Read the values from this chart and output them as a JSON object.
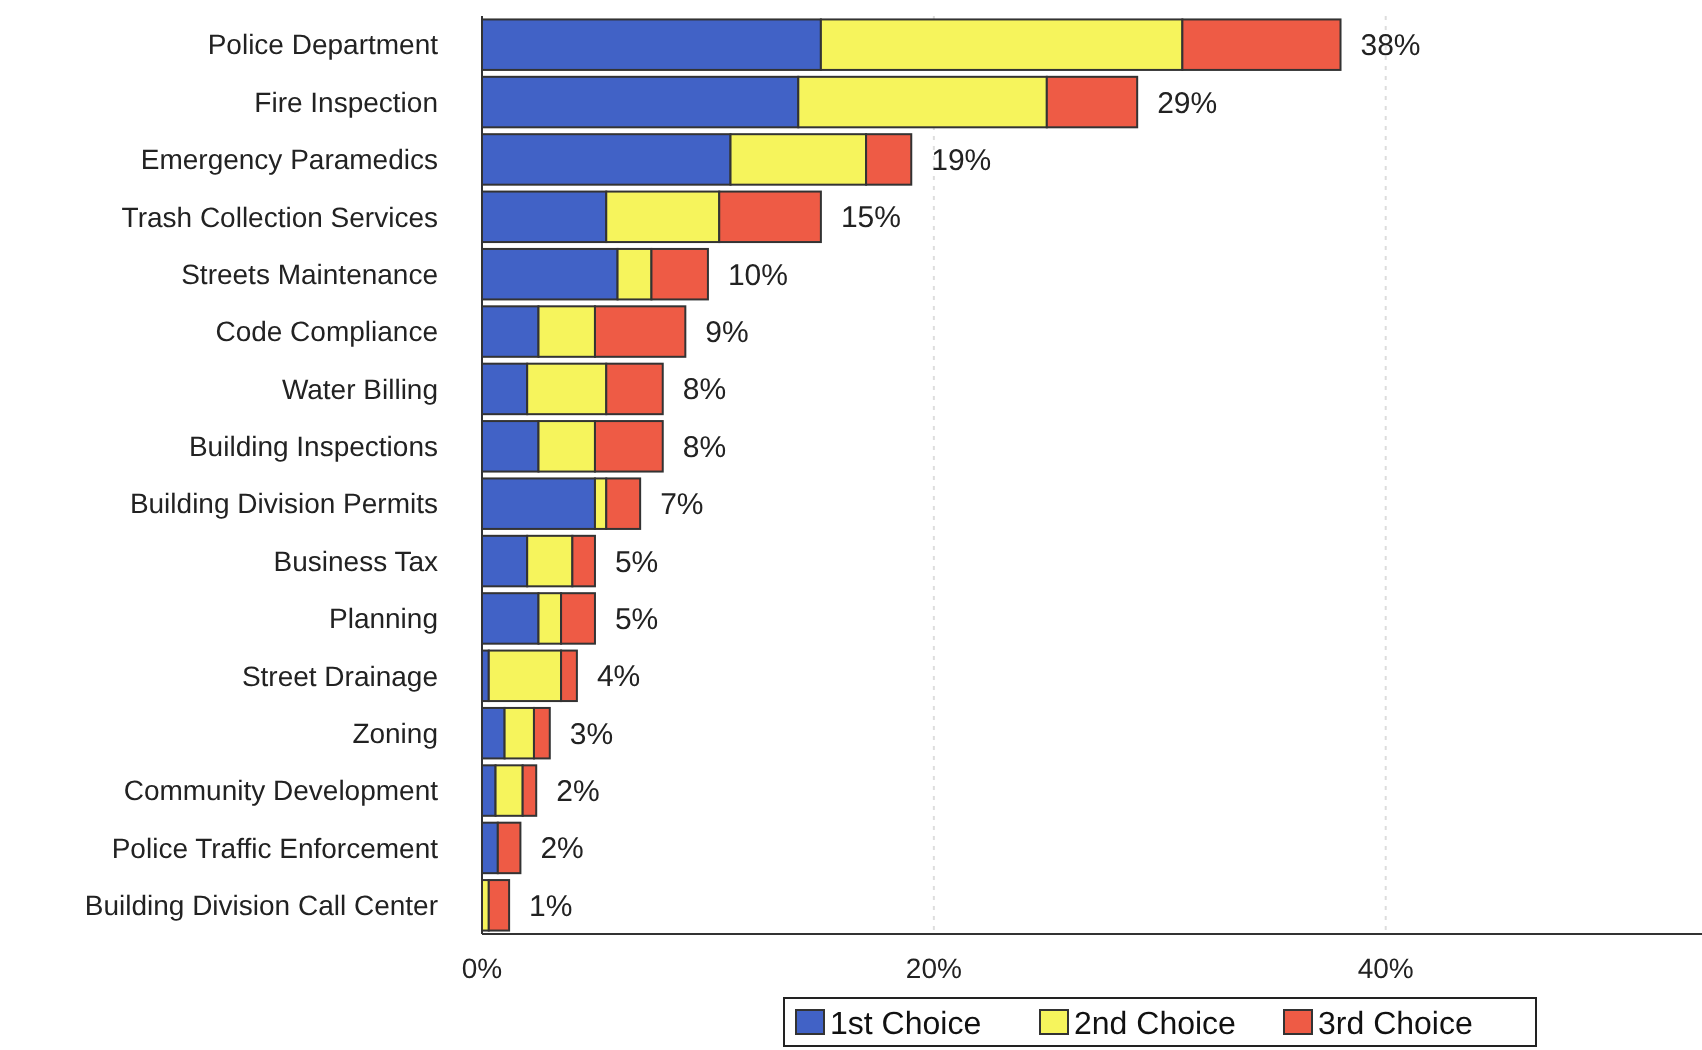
{
  "chart_data": {
    "type": "bar",
    "orientation": "horizontal",
    "stacked": true,
    "categories": [
      "Police Department",
      "Fire Inspection",
      "Emergency Paramedics",
      "Trash Collection Services",
      "Streets Maintenance",
      "Code Compliance",
      "Water Billing",
      "Building Inspections",
      "Building Division Permits",
      "Business Tax",
      "Planning",
      "Street Drainage",
      "Zoning",
      "Community Development",
      "Police Traffic Enforcement",
      "Building Division Call Center"
    ],
    "series": [
      {
        "name": "1st Choice",
        "color": "#4162c6",
        "values": [
          15,
          14,
          11,
          5.5,
          6,
          2.5,
          2,
          2.5,
          5,
          2,
          2.5,
          0.3,
          1,
          0.6,
          0.7,
          null
        ]
      },
      {
        "name": "2nd Choice",
        "color": "#f6f45c",
        "values": [
          16,
          11,
          6,
          5,
          1.5,
          2.5,
          3.5,
          2.5,
          0.5,
          2,
          1,
          3.2,
          1.3,
          1.2,
          0,
          0.3
        ]
      },
      {
        "name": "3rd Choice",
        "color": "#ee5b45",
        "values": [
          7,
          4,
          2,
          4.5,
          2.5,
          4,
          2.5,
          3,
          1.5,
          1,
          1.5,
          0.7,
          0.7,
          0.6,
          1,
          0.9
        ]
      }
    ],
    "totals": [
      "38%",
      "29%",
      "19%",
      "15%",
      "10%",
      "9%",
      "8%",
      "8%",
      "7%",
      "5%",
      "5%",
      "4%",
      "3%",
      "2%",
      "2%",
      "1%"
    ],
    "xlim": [
      0,
      54
    ],
    "xticks": [
      {
        "value": 0,
        "label": "0%"
      },
      {
        "value": 20,
        "label": "20%"
      },
      {
        "value": 40,
        "label": "40%"
      }
    ],
    "grid": "x",
    "legend": "bottom"
  }
}
